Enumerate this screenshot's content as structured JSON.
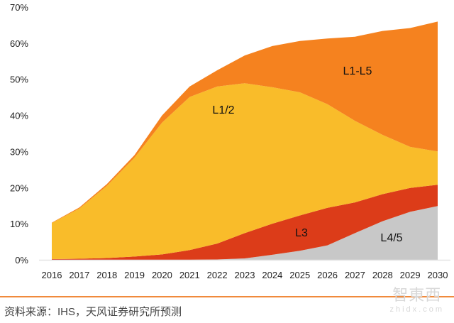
{
  "chart_data": {
    "type": "area",
    "stacked": true,
    "categories": [
      "2016",
      "2017",
      "2018",
      "2019",
      "2020",
      "2021",
      "2022",
      "2023",
      "2024",
      "2025",
      "2026",
      "2027",
      "2028",
      "2029",
      "2030"
    ],
    "series": [
      {
        "name": "L4/5",
        "color": "#c8c8c8",
        "values": [
          0,
          0,
          0,
          0,
          0,
          0,
          0.1,
          0.4,
          1.4,
          2.5,
          4.0,
          7.4,
          10.7,
          13.3,
          14.9
        ]
      },
      {
        "name": "L3",
        "color": "#dc3c19",
        "values": [
          0.2,
          0.3,
          0.5,
          0.9,
          1.5,
          2.7,
          4.4,
          7.0,
          8.6,
          9.8,
          10.4,
          8.5,
          7.5,
          6.6,
          5.9
        ]
      },
      {
        "name": "L1/2",
        "color": "#f9bc2a",
        "values": [
          10.0,
          13.9,
          20.0,
          27.4,
          36.5,
          42.4,
          43.5,
          41.5,
          37.8,
          34.1,
          28.7,
          22.6,
          16.4,
          11.4,
          9.2
        ]
      },
      {
        "name": "L1-L5",
        "color": "#f5821f",
        "values": [
          0.1,
          0.3,
          0.5,
          0.7,
          2.0,
          2.9,
          4.5,
          7.7,
          11.4,
          14.2,
          18.2,
          23.3,
          28.8,
          32.9,
          36.0
        ]
      }
    ],
    "yticks": [
      "0%",
      "10%",
      "20%",
      "30%",
      "40%",
      "50%",
      "60%",
      "70%"
    ],
    "ylim": [
      0,
      70
    ],
    "yunit": "%",
    "grid": false,
    "legend": "inline labels"
  },
  "footer": {
    "source": "资料来源：IHS，天风证券研究所预测",
    "watermark": "智东西 zhidx.com",
    "rule_color": "#f08a3c"
  }
}
